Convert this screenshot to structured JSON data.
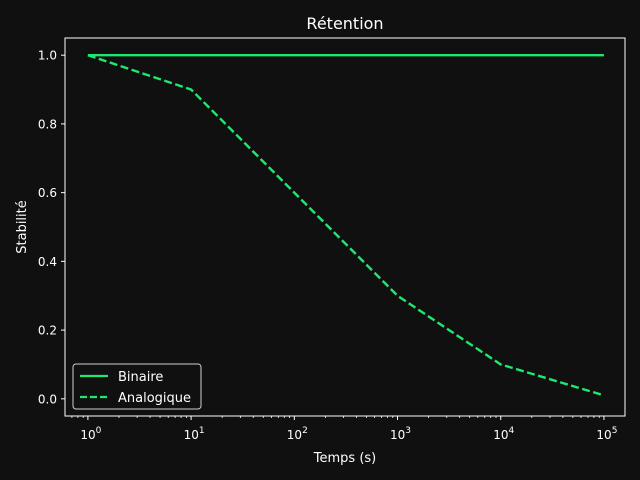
{
  "chart_data": {
    "type": "line",
    "title": "Rétention",
    "xlabel": "Temps (s)",
    "ylabel": "Stabilité",
    "xscale": "log",
    "xlim": [
      0.6,
      160000
    ],
    "ylim": [
      -0.05,
      1.05
    ],
    "x_ticks": [
      1,
      10,
      100,
      1000,
      10000,
      100000
    ],
    "x_tick_labels": [
      {
        "base": "10",
        "exp": "0"
      },
      {
        "base": "10",
        "exp": "1"
      },
      {
        "base": "10",
        "exp": "2"
      },
      {
        "base": "10",
        "exp": "3"
      },
      {
        "base": "10",
        "exp": "4"
      },
      {
        "base": "10",
        "exp": "5"
      }
    ],
    "y_ticks": [
      0.0,
      0.2,
      0.4,
      0.6,
      0.8,
      1.0
    ],
    "y_tick_labels": [
      "0.0",
      "0.2",
      "0.4",
      "0.6",
      "0.8",
      "1.0"
    ],
    "grid": false,
    "legend_position": "lower-left",
    "colors": {
      "background": "#101010",
      "axes": "#ffffff",
      "series": "#1de86f"
    },
    "series": [
      {
        "name": "Binaire",
        "style": "solid",
        "x": [
          1,
          10,
          100,
          1000,
          10000,
          100000
        ],
        "y": [
          1.0,
          1.0,
          1.0,
          1.0,
          1.0,
          1.0
        ]
      },
      {
        "name": "Analogique",
        "style": "dashed",
        "x": [
          1,
          10,
          100,
          1000,
          10000,
          100000
        ],
        "y": [
          1.0,
          0.9,
          0.6,
          0.3,
          0.1,
          0.01
        ]
      }
    ]
  }
}
